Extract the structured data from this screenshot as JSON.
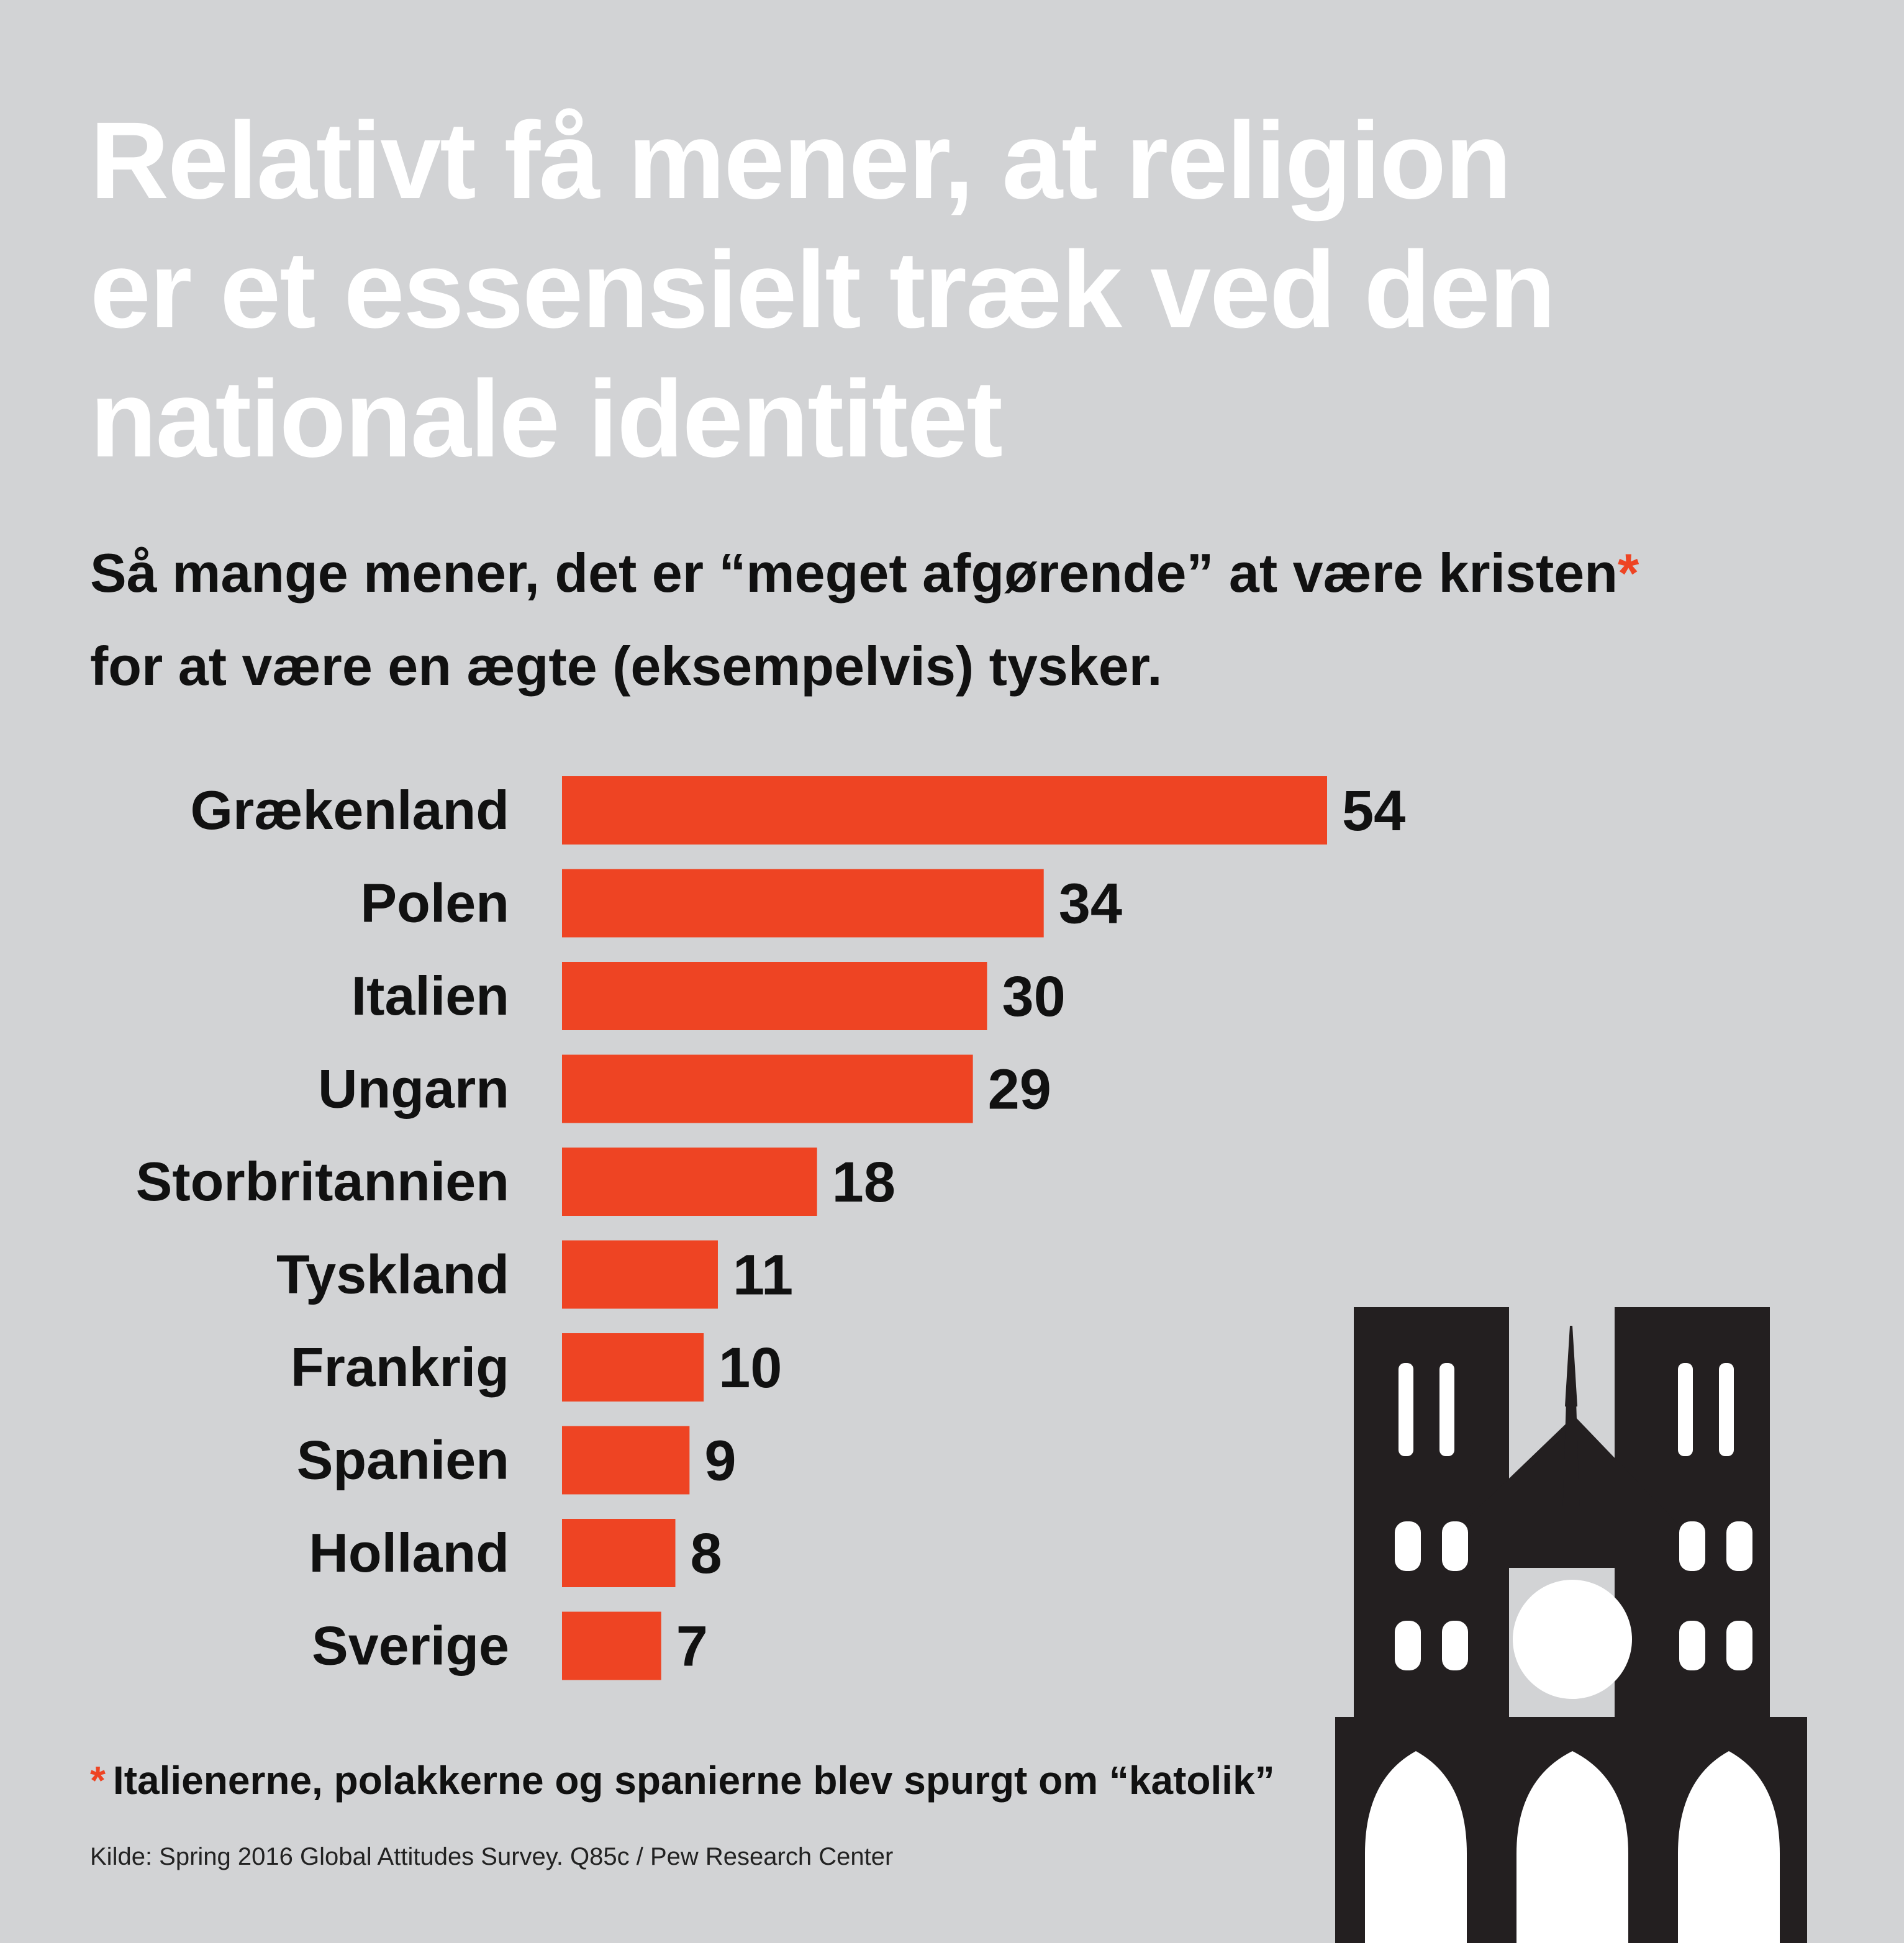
{
  "title_lines": [
    "Relativt få mener, at religion",
    "er et essensielt træk ved den",
    "nationale identitet"
  ],
  "subtitle": {
    "line1": "Så mange mener, det er “meget afgørende” at være kristen",
    "asterisk": "*",
    "line2": "for at være en ægte (eksempelvis) tysker."
  },
  "chart_data": {
    "type": "bar",
    "orientation": "horizontal",
    "title": "Relativt få mener, at religion er et essensielt træk ved den nationale identitet",
    "subtitle": "Så mange mener, det er “meget afgørende” at være kristen* for at være en ægte (eksempelvis) tysker.",
    "categories": [
      "Grækenland",
      "Polen",
      "Italien",
      "Ungarn",
      "Storbritannien",
      "Tyskland",
      "Frankrig",
      "Spanien",
      "Holland",
      "Sverige"
    ],
    "values": [
      54,
      34,
      30,
      29,
      18,
      11,
      10,
      9,
      8,
      7
    ],
    "xlim": [
      0,
      54
    ],
    "bar_color": "#ee4423",
    "grid": false,
    "legend": "none"
  },
  "footnote": {
    "asterisk": "*",
    "text": "Italienerne, polakkerne og spanierne blev spurgt om “katolik”"
  },
  "source": "Kilde: Spring 2016 Global Attitudes Survey. Q85c / Pew Research Center",
  "colors": {
    "background": "#d2d3d5",
    "accent": "#ee4423",
    "title": "#ffffff",
    "text": "#111111",
    "cathedral": "#231f20"
  },
  "illustration": "cathedral-icon"
}
